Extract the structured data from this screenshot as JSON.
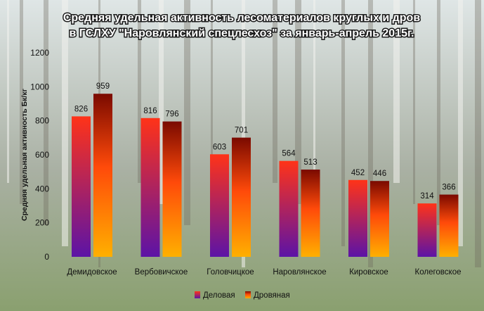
{
  "chart_data": {
    "type": "bar",
    "title_line1": "Средняя удельная активность лесоматериалов круглых и дров",
    "title_line2": "в ГСЛХУ \"Наровлянский спецлесхоз\" за январь-апрель 2015г.",
    "ylabel": "Средняя удельная активность  Бк/кг",
    "xlabel": "",
    "ylim": [
      0,
      1200
    ],
    "yticks": [
      "0",
      "200",
      "400",
      "600",
      "800",
      "1000",
      "1200"
    ],
    "categories": [
      "Демидовское",
      "Вербовичское",
      "Головчицкое",
      "Наровлянское",
      "Кировское",
      "Колеговское"
    ],
    "series": [
      {
        "name": "Деловая",
        "values": [
          826,
          816,
          603,
          564,
          452,
          314
        ],
        "gradient_bottom": "#5c13a6",
        "gradient_top": "#ff3318",
        "labels": [
          "826",
          "816",
          "603",
          "564",
          "452",
          "314"
        ]
      },
      {
        "name": "Дровяная",
        "values": [
          959,
          796,
          701,
          513,
          446,
          366
        ],
        "gradient_bottom": "#ffb000",
        "gradient_top": "#7a0a00",
        "labels": [
          "959",
          "796",
          "701",
          "513",
          "446",
          "366"
        ]
      }
    ],
    "grid": false,
    "legend_position": "bottom"
  },
  "colors": {
    "sky": "#dfe6e6",
    "forest": "#a9b0a3",
    "ground": "#8aa06f"
  }
}
